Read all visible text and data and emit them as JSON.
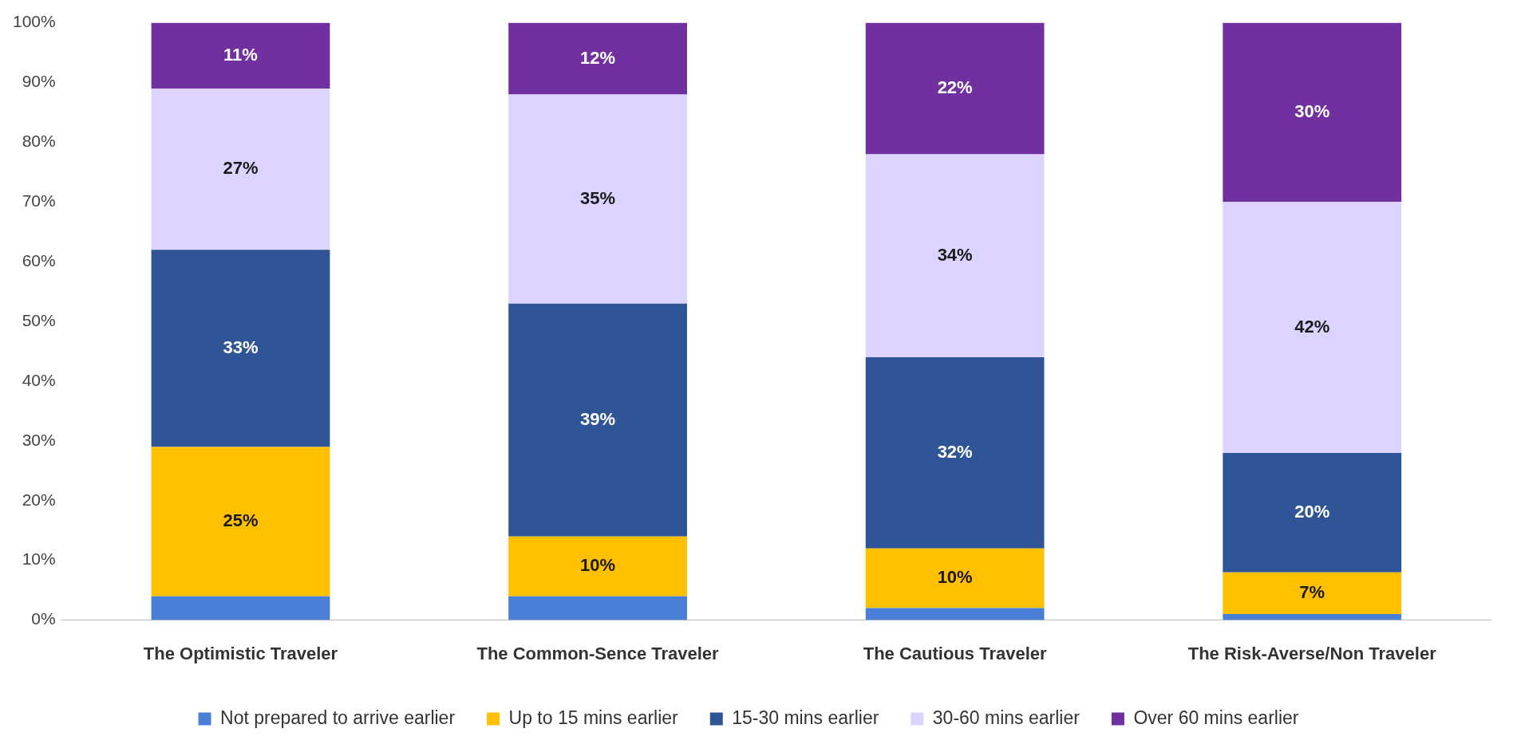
{
  "chart_data": {
    "type": "bar",
    "stacked": true,
    "categories": [
      "The Optimistic Traveler",
      "The Common-Sence Traveler",
      "The Cautious Traveler",
      "The Risk-Averse/Non Traveler"
    ],
    "series": [
      {
        "name": "Not prepared to arrive earlier",
        "color": "#4a7fd8",
        "values": [
          4,
          4,
          2,
          1
        ]
      },
      {
        "name": "Up to 15 mins earlier",
        "color": "#ffc000",
        "values": [
          25,
          10,
          10,
          7
        ],
        "value_labels": [
          "25%",
          "10%",
          "10%",
          "7%"
        ]
      },
      {
        "name": "15-30 mins earlier",
        "color": "#2f5597",
        "values": [
          33,
          39,
          32,
          20
        ],
        "value_labels": [
          "33%",
          "39%",
          "32%",
          "20%"
        ]
      },
      {
        "name": "30-60 mins earlier",
        "color": "#dcd3ff",
        "values": [
          27,
          35,
          34,
          42
        ],
        "value_labels": [
          "27%",
          "35%",
          "34%",
          "42%"
        ]
      },
      {
        "name": "Over 60 mins earlier",
        "color": "#7030a0",
        "values": [
          11,
          12,
          22,
          30
        ],
        "value_labels": [
          "11%",
          "12%",
          "22%",
          "30%"
        ]
      }
    ],
    "ylim": [
      0,
      100
    ],
    "yticks": [
      {
        "value": 0,
        "label": "0%"
      },
      {
        "value": 10,
        "label": "10%"
      },
      {
        "value": 20,
        "label": "20%"
      },
      {
        "value": 30,
        "label": "30%"
      },
      {
        "value": 40,
        "label": "40%"
      },
      {
        "value": 50,
        "label": "50%"
      },
      {
        "value": 60,
        "label": "60%"
      },
      {
        "value": 70,
        "label": "70%"
      },
      {
        "value": 80,
        "label": "80%"
      },
      {
        "value": 90,
        "label": "90%"
      },
      {
        "value": 100,
        "label": "100%"
      }
    ],
    "grid": false,
    "legend": "bottom"
  }
}
